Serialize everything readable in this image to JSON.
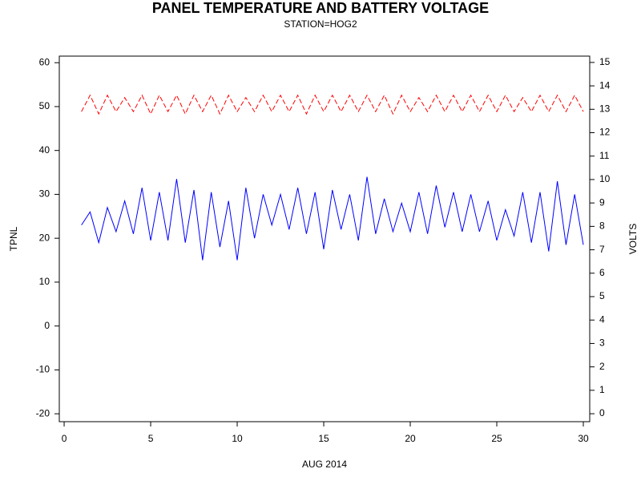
{
  "chart_data": {
    "type": "line",
    "title": "PANEL TEMPERATURE AND BATTERY VOLTAGE",
    "subtitle": "STATION=HOG2",
    "xlabel": "AUG 2014",
    "x": [
      1,
      1.5,
      2,
      2.5,
      3,
      3.5,
      4,
      4.5,
      5,
      5.5,
      6,
      6.5,
      7,
      7.5,
      8,
      8.5,
      9,
      9.5,
      10,
      10.5,
      11,
      11.5,
      12,
      12.5,
      13,
      13.5,
      14,
      14.5,
      15,
      15.5,
      16,
      16.5,
      17,
      17.5,
      18,
      18.5,
      19,
      19.5,
      20,
      20.5,
      21,
      21.5,
      22,
      22.5,
      23,
      23.5,
      24,
      24.5,
      25,
      25.5,
      26,
      26.5,
      27,
      27.5,
      28,
      28.5,
      29,
      29.5,
      30
    ],
    "series": [
      {
        "name": "TPNL",
        "color": "#0000ff",
        "axis": "y",
        "dashed": false,
        "values": [
          23,
          26,
          19,
          27,
          21.5,
          28.5,
          21,
          31.5,
          19.5,
          30.5,
          19.5,
          33.5,
          19,
          31,
          15,
          30.5,
          18,
          28.5,
          15,
          31.5,
          20,
          30,
          23,
          30,
          22,
          31.5,
          21,
          30.5,
          17.5,
          31,
          22,
          30,
          19.5,
          34,
          21,
          29,
          21.5,
          28,
          21.5,
          30.5,
          21,
          32,
          22.5,
          30.5,
          21.5,
          30,
          21.5,
          28.5,
          19.5,
          26.5,
          20.5,
          30.5,
          19,
          30.5,
          17,
          33,
          18.5,
          30,
          18.5
        ]
      },
      {
        "name": "VOLTS",
        "color": "#ff0000",
        "axis": "y2",
        "dashed": true,
        "values": [
          12.9,
          13.6,
          12.8,
          13.6,
          12.9,
          13.5,
          12.9,
          13.6,
          12.8,
          13.6,
          12.9,
          13.6,
          12.8,
          13.6,
          12.9,
          13.6,
          12.8,
          13.6,
          12.9,
          13.5,
          12.9,
          13.6,
          12.9,
          13.6,
          12.9,
          13.6,
          12.8,
          13.6,
          12.9,
          13.6,
          12.9,
          13.6,
          12.9,
          13.6,
          12.9,
          13.6,
          12.8,
          13.6,
          12.9,
          13.5,
          12.9,
          13.6,
          12.9,
          13.6,
          12.9,
          13.6,
          12.9,
          13.6,
          12.9,
          13.6,
          12.9,
          13.5,
          12.9,
          13.6,
          12.9,
          13.6,
          12.9,
          13.6,
          12.9
        ]
      }
    ],
    "xlim": [
      -0.28,
      30.37
    ],
    "xticks": [
      0,
      5,
      10,
      15,
      20,
      25,
      30
    ],
    "ylim": [
      -21.8,
      61.5
    ],
    "yticks": [
      -20,
      -10,
      0,
      10,
      20,
      30,
      40,
      50,
      60
    ],
    "y2lim": [
      -0.34,
      15.27
    ],
    "y2ticks": [
      0,
      1,
      2,
      3,
      4,
      5,
      6,
      7,
      8,
      9,
      10,
      11,
      12,
      13,
      14,
      15
    ],
    "grid": false
  }
}
